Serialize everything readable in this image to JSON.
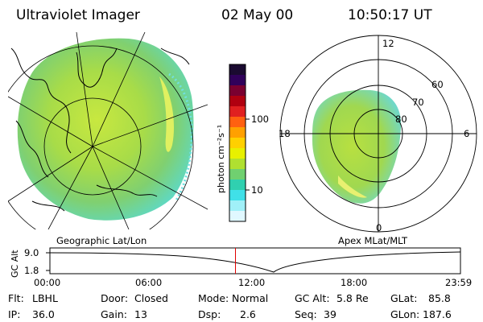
{
  "header": {
    "instrument": "Ultraviolet Imager",
    "date": "02 May 00",
    "time": "10:50:17 UT"
  },
  "geo_map": {
    "label": "Geographic Lat/Lon"
  },
  "apex_map": {
    "label": "Apex MLat/MLT",
    "mlt_labels": {
      "top": "12",
      "right": "6",
      "bottom": "0",
      "left": "18"
    },
    "lat_labels": [
      "60",
      "70",
      "80"
    ]
  },
  "colorbar": {
    "unit_label": "photon cm⁻²s⁻¹",
    "ticks": [
      "100",
      "10"
    ],
    "colors": [
      "#1a0a30",
      "#30005a",
      "#7a0030",
      "#b00010",
      "#e02020",
      "#ff6010",
      "#ffa000",
      "#ffd000",
      "#e8f000",
      "#b0e030",
      "#70d070",
      "#30d0b0",
      "#40e0e8",
      "#a0f0f8",
      "#e0f8ff"
    ]
  },
  "altitude_plot": {
    "ylabel": "GC Alt",
    "yticks": [
      "9.0",
      "1.8"
    ],
    "xticks": [
      "00:00",
      "06:00",
      "12:00",
      "18:00",
      "23:59"
    ],
    "current_time_fraction": 0.452,
    "current_line_color": "#e00000"
  },
  "status": {
    "flt_label": "Flt:",
    "flt_value": "LBHL",
    "door_label": "Door:",
    "door_value": "Closed",
    "mode_label": "Mode:",
    "mode_value": "Normal",
    "gcalt_label": "GC Alt:",
    "gcalt_value": "5.8 Re",
    "glat_label": "GLat:",
    "glat_value": "85.8",
    "ip_label": "IP:",
    "ip_value": "36.0",
    "gain_label": "Gain:",
    "gain_value": "13",
    "dsp_label": "Dsp:",
    "dsp_value": "2.6",
    "seq_label": "Seq:",
    "seq_value": "39",
    "glon_label": "GLon:",
    "glon_value": "187.6"
  }
}
